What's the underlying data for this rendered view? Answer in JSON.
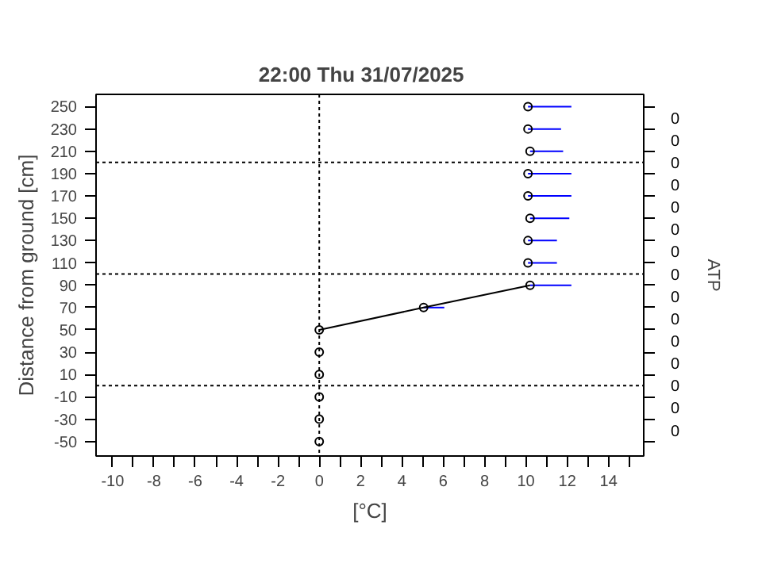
{
  "chart_data": {
    "type": "scatter",
    "title": "22:00   Thu  31/07/2025",
    "xlabel": "[°C]",
    "ylabel": "Distance from ground [cm]",
    "y2label": "ATP",
    "xlim": [
      -10.8,
      15.7
    ],
    "ylim": [
      -63,
      261
    ],
    "annotations": [
      "0",
      "0",
      "0",
      "0",
      "0",
      "0",
      "0",
      "0",
      "0",
      "0",
      "0",
      "0",
      "0",
      "0",
      "0"
    ],
    "xticks": [
      -10,
      {
        "value": -9,
        "label": null
      },
      -8,
      {
        "value": -7,
        "label": null
      },
      -6,
      {
        "value": -5,
        "label": null
      },
      -4,
      {
        "value": -3,
        "label": null
      },
      -2,
      {
        "value": -1,
        "label": null
      },
      0,
      {
        "value": 1,
        "label": null
      },
      2,
      {
        "value": 3,
        "label": null
      },
      4,
      {
        "value": 5,
        "label": null
      },
      6,
      {
        "value": 7,
        "label": null
      },
      8,
      {
        "value": 9,
        "label": null
      },
      10,
      {
        "value": 11,
        "label": null
      },
      12,
      {
        "value": 13,
        "label": null
      },
      14,
      {
        "value": 15,
        "label": null
      }
    ],
    "yticks": [
      -50,
      -30,
      -10,
      10,
      30,
      50,
      70,
      90,
      110,
      130,
      150,
      170,
      190,
      210,
      230,
      250
    ],
    "ref_lines": [
      {
        "axis": "y",
        "value": 200,
        "line_style": "dotted"
      },
      {
        "axis": "y",
        "value": 100,
        "line_style": "dotted"
      },
      {
        "axis": "y",
        "value": 0,
        "line_style": "dotted"
      },
      {
        "axis": "x",
        "value": 0,
        "line_style": "dotted"
      }
    ],
    "grid": false,
    "series": [
      {
        "color": "#000000",
        "marker": "circle",
        "x": [
          0,
          0,
          0,
          0,
          0,
          0,
          5.05,
          10.2,
          10.1,
          10.1,
          10.2,
          10.1,
          10.1,
          10.2,
          10.1,
          10.1
        ],
        "values": [
          -50,
          -30,
          -10,
          10,
          30,
          50,
          70,
          90,
          110,
          130,
          150,
          170,
          190,
          210,
          230,
          250
        ],
        "xerrors": [
          null,
          null,
          null,
          null,
          null,
          null,
          [
            5.05,
            6.05
          ],
          [
            10.2,
            12.2
          ],
          [
            10.1,
            11.5
          ],
          [
            10.1,
            11.5
          ],
          [
            10.2,
            12.1
          ],
          [
            10.1,
            12.2
          ],
          [
            10.1,
            12.2
          ],
          [
            10.2,
            11.8
          ],
          [
            10.1,
            11.7
          ],
          [
            10.1,
            12.2
          ]
        ]
      },
      {
        "type": "line",
        "color": "#000000",
        "marker": "none",
        "x": [
          0,
          5.05,
          10.2
        ],
        "values": [
          50,
          70,
          90
        ]
      }
    ]
  }
}
